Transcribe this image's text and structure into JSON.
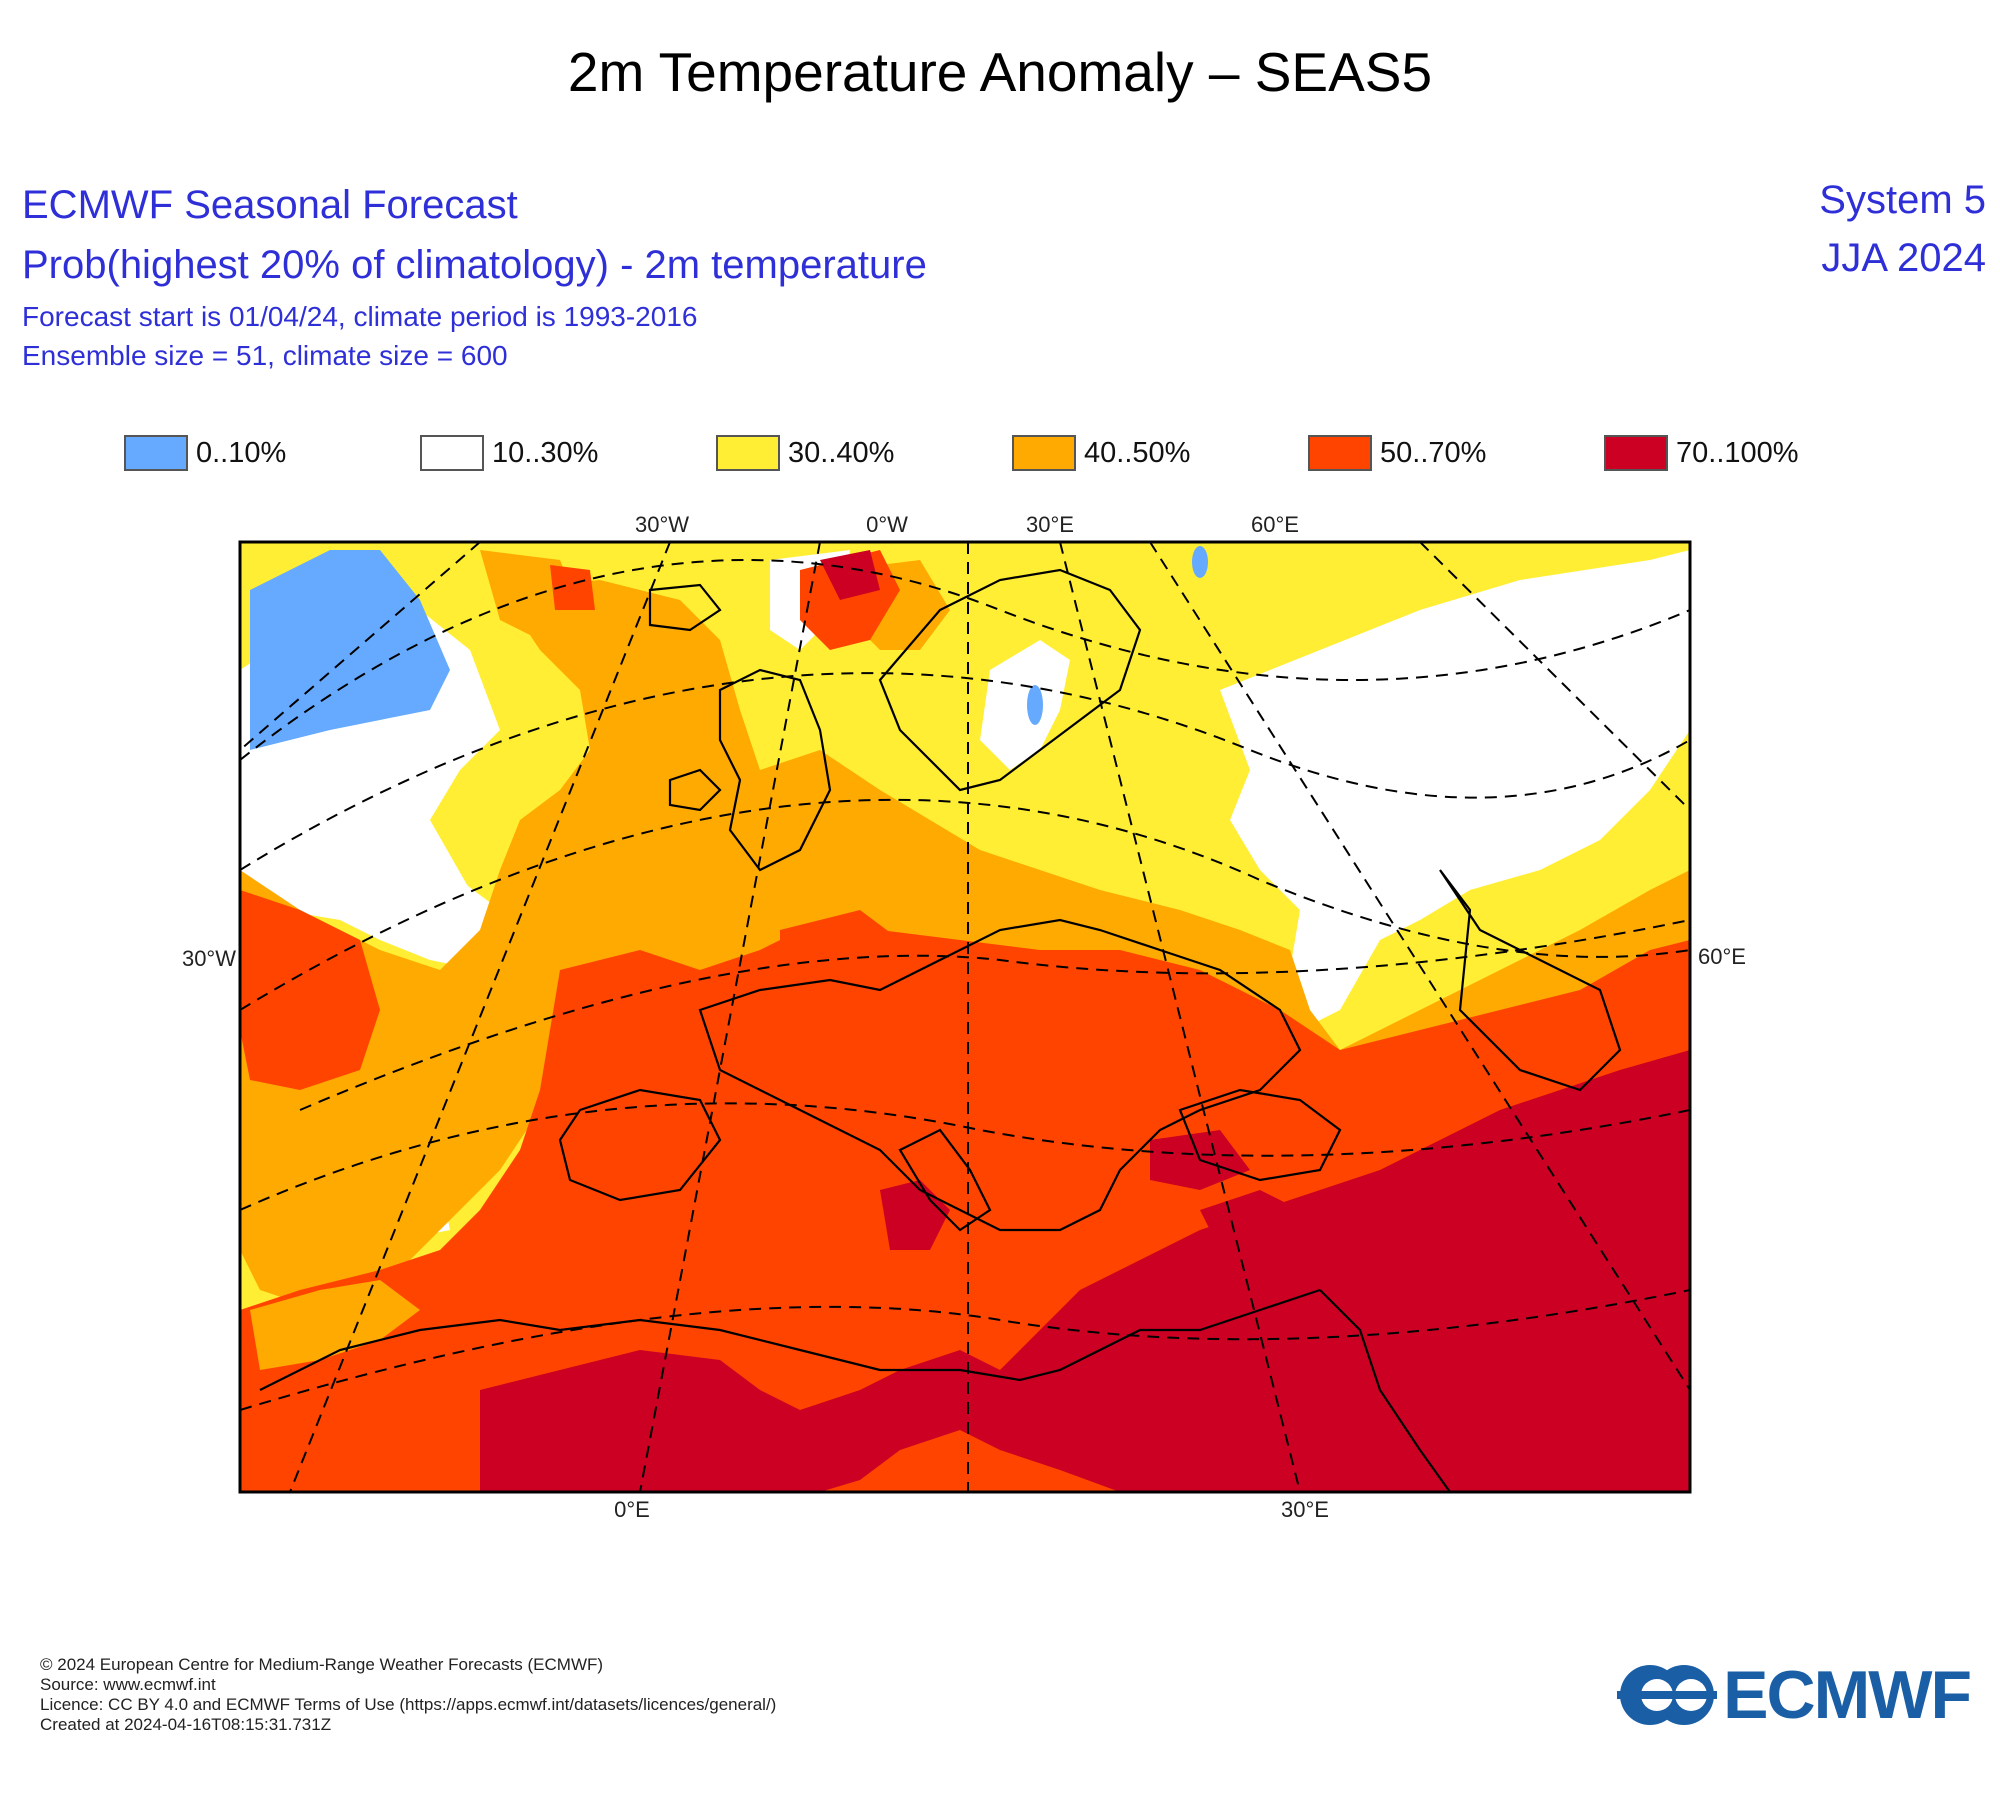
{
  "title": "2m Temperature Anomaly – SEAS5",
  "header": {
    "line1": "ECMWF Seasonal Forecast",
    "line2": "Prob(highest 20% of climatology) - 2m temperature",
    "line3": "Forecast start is 01/04/24, climate period is 1993-2016",
    "line4": "Ensemble size = 51, climate size = 600",
    "system": "System 5",
    "period": "JJA 2024"
  },
  "legend": [
    {
      "label": "0..10%",
      "color": "#66aaff"
    },
    {
      "label": "10..30%",
      "color": "#ffffff"
    },
    {
      "label": "30..40%",
      "color": "#ffee33"
    },
    {
      "label": "40..50%",
      "color": "#ffaa00"
    },
    {
      "label": "50..70%",
      "color": "#ff4400"
    },
    {
      "label": "70..100%",
      "color": "#cc0022"
    }
  ],
  "map": {
    "top_ticks": [
      "30°W",
      "0°W",
      "30°E",
      "60°E"
    ],
    "bottom_ticks": [
      "0°E",
      "30°E"
    ],
    "left_tick": "30°W",
    "right_tick": "60°E"
  },
  "footer": {
    "line1": "© 2024 European Centre for Medium-Range Weather Forecasts (ECMWF)",
    "line2": "Source: www.ecmwf.int",
    "line3": "Licence: CC BY 4.0 and ECMWF Terms of Use (https://apps.ecmwf.int/datasets/licences/general/)",
    "line4": "Created at 2024-04-16T08:15:31.731Z"
  },
  "logo_text": "ECMWF"
}
